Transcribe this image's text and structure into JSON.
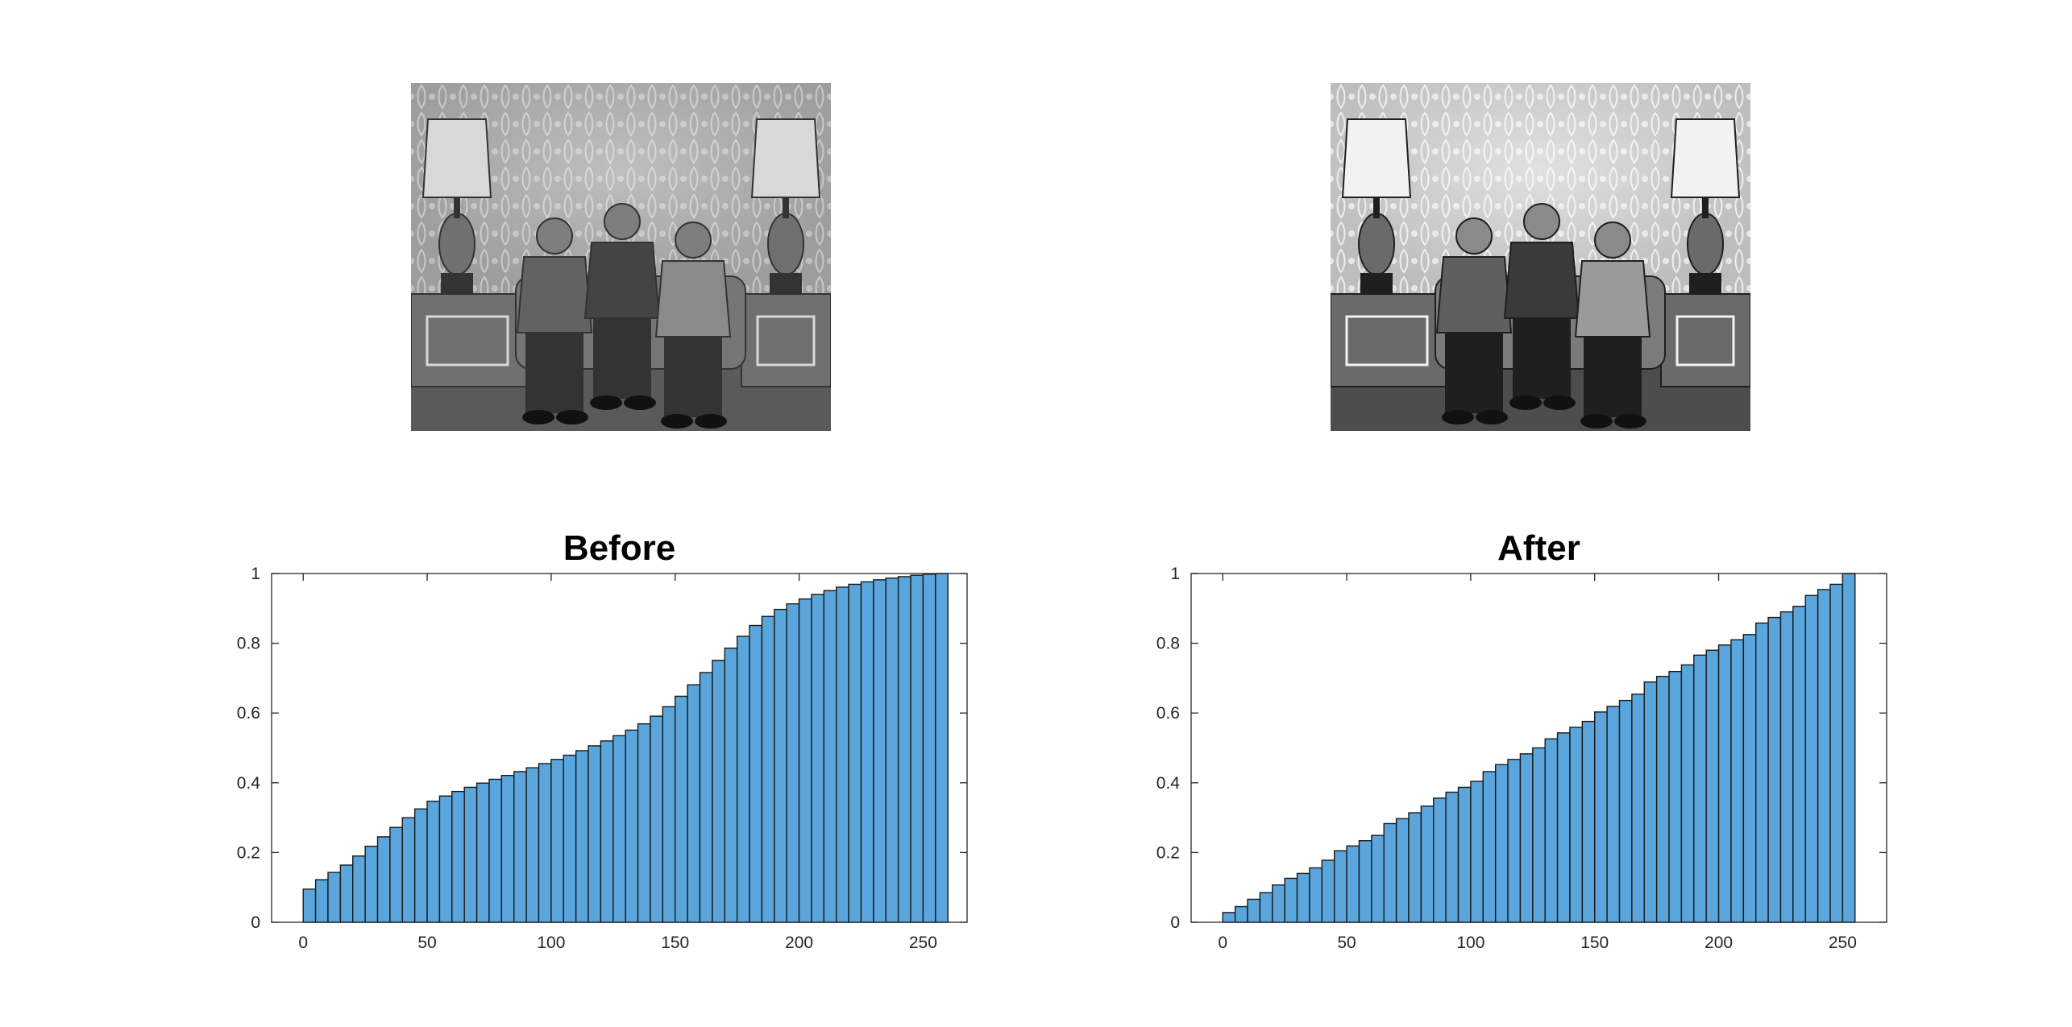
{
  "figure": {
    "images": [
      {
        "name": "before-photo",
        "description": "grayscale photo, lower contrast"
      },
      {
        "name": "after-photo",
        "description": "grayscale photo, equalized contrast"
      }
    ]
  },
  "chart_data": [
    {
      "type": "bar",
      "title": "Before",
      "xlabel": "",
      "ylabel": "",
      "xlim": [
        -12.75,
        267.75
      ],
      "ylim": [
        0,
        1
      ],
      "xticks": [
        "0",
        "50",
        "100",
        "150",
        "200",
        "250"
      ],
      "yticks": [
        "0",
        "0.2",
        "0.4",
        "0.6",
        "0.8",
        "1"
      ],
      "bin_width": 5,
      "bin_start": 0,
      "bar_color": "#5aa5dc",
      "edge_color": "#1a1a1a",
      "values": [
        0.095,
        0.122,
        0.143,
        0.164,
        0.19,
        0.218,
        0.245,
        0.272,
        0.3,
        0.325,
        0.347,
        0.362,
        0.375,
        0.387,
        0.399,
        0.41,
        0.421,
        0.432,
        0.443,
        0.455,
        0.467,
        0.479,
        0.492,
        0.506,
        0.52,
        0.535,
        0.551,
        0.569,
        0.591,
        0.618,
        0.648,
        0.681,
        0.716,
        0.751,
        0.786,
        0.82,
        0.851,
        0.877,
        0.897,
        0.913,
        0.927,
        0.94,
        0.951,
        0.961,
        0.969,
        0.976,
        0.982,
        0.987,
        0.991,
        0.995,
        0.998,
        1.0
      ]
    },
    {
      "type": "bar",
      "title": "After",
      "xlabel": "",
      "ylabel": "",
      "xlim": [
        -12.75,
        267.75
      ],
      "ylim": [
        0,
        1
      ],
      "xticks": [
        "0",
        "50",
        "100",
        "150",
        "200",
        "250"
      ],
      "yticks": [
        "0",
        "0.2",
        "0.4",
        "0.6",
        "0.8",
        "1"
      ],
      "bin_width": 5,
      "bin_start": 0,
      "bar_color": "#5aa5dc",
      "edge_color": "#1a1a1a",
      "values": [
        0.028,
        0.045,
        0.066,
        0.085,
        0.107,
        0.126,
        0.14,
        0.156,
        0.178,
        0.205,
        0.219,
        0.234,
        0.249,
        0.283,
        0.297,
        0.314,
        0.333,
        0.356,
        0.373,
        0.387,
        0.404,
        0.432,
        0.452,
        0.467,
        0.483,
        0.5,
        0.526,
        0.543,
        0.559,
        0.576,
        0.603,
        0.619,
        0.636,
        0.654,
        0.689,
        0.705,
        0.719,
        0.738,
        0.766,
        0.78,
        0.795,
        0.81,
        0.825,
        0.858,
        0.874,
        0.89,
        0.906,
        0.937,
        0.954,
        0.969,
        1.0
      ]
    }
  ]
}
